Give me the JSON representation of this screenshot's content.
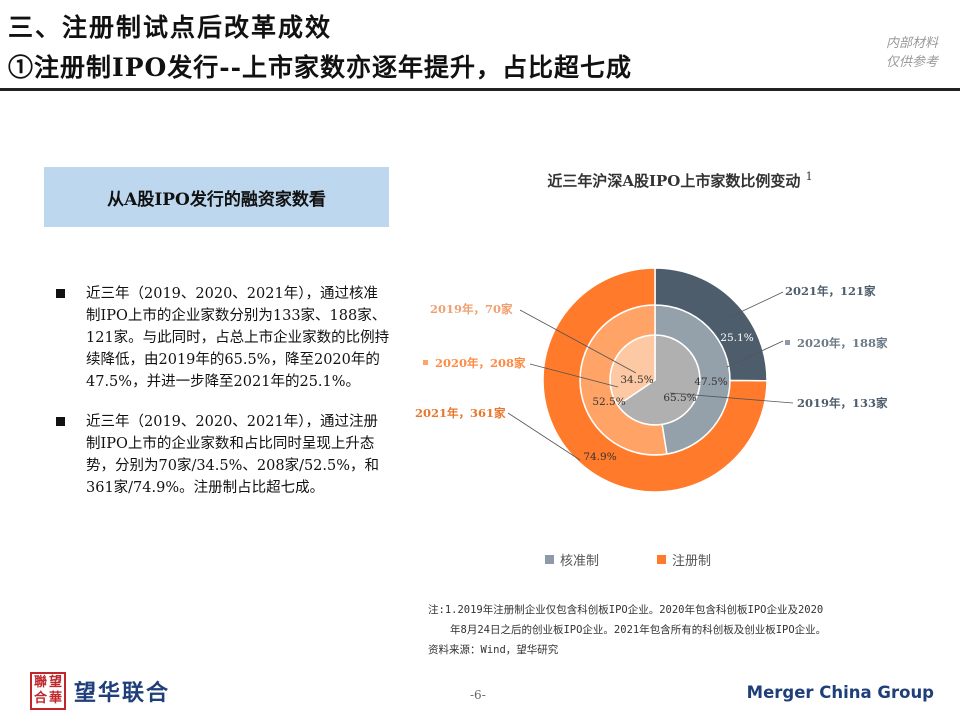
{
  "header": {
    "title": "三、注册制试点后改革成效",
    "subtitle": "①注册制IPO发行--上市家数亦逐年提升，占比超七成",
    "internal_line1": "内部材料",
    "internal_line2": "仅供参考"
  },
  "subhead": "从A股IPO发行的融资家数看",
  "bullets": [
    "近三年（2019、2020、2021年），通过核准制IPO上市的企业家数分别为133家、188家、121家。与此同时，占总上市企业家数的比例持续降低，由2019年的65.5%，降至2020年的47.5%，并进一步降至2021年的25.1%。",
    "近三年（2019、2020、2021年），通过注册制IPO上市的企业家数和占比同时呈现上升态势，分别为70家/34.5%、208家/52.5%，和361家/74.9%。注册制占比超七成。"
  ],
  "chart_data": {
    "type": "pie",
    "title": "近三年沪深A股IPO上市家数比例变动",
    "title_note": "1",
    "series": [
      {
        "name": "核准制",
        "color": "#4e5d6c",
        "values": [
          133,
          188,
          121
        ],
        "pct_labels": [
          "65.5%",
          "47.5%",
          "25.1%"
        ]
      },
      {
        "name": "注册制",
        "color": "#ff7a2a",
        "values": [
          70,
          208,
          361
        ],
        "pct_labels": [
          "34.5%",
          "52.5%",
          "74.9%"
        ]
      }
    ],
    "rings": [
      "2019",
      "2020",
      "2021"
    ],
    "callouts": {
      "y2021_approval": "2021年，121家",
      "y2020_approval": "2020年，188家",
      "y2019_approval": "2019年，133家",
      "y2019_registration": "2019年，70家",
      "y2020_registration": "2020年，208家",
      "y2021_registration": "2021年，361家"
    },
    "legend": [
      "核准制",
      "注册制"
    ]
  },
  "notes": {
    "line1": "注:1.2019年注册制企业仅包含科创板IPO企业。2020年包含科创板IPO企业及2020",
    "line2": "年8月24日之后的创业板IPO企业。2021年包含所有的科创板及创业板IPO企业。",
    "line3": "资料来源：Wind，望华研究"
  },
  "footer": {
    "seal_chars": [
      "聯",
      "望",
      "合",
      "華"
    ],
    "logo_text": "望华联合",
    "page": "-6-",
    "brand": "Merger China Group"
  }
}
